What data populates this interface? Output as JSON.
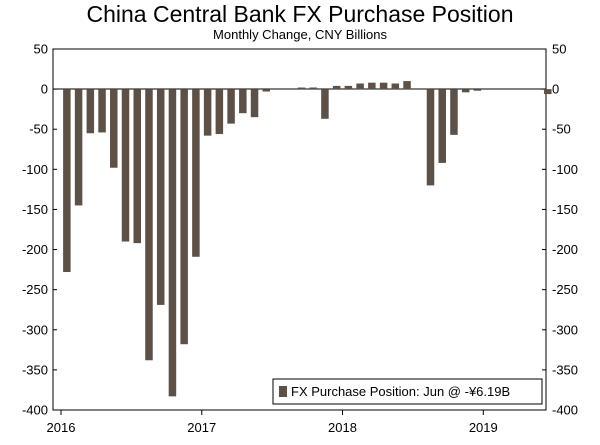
{
  "chart_data": {
    "type": "bar",
    "title": "China Central Bank FX Purchase Position",
    "subtitle": "Monthly Change, CNY Billions",
    "ylim": [
      -400,
      50
    ],
    "yticks": [
      50,
      0,
      -50,
      -100,
      -150,
      -200,
      -250,
      -300,
      -350,
      -400
    ],
    "xlabels": [
      "2016",
      "2017",
      "2018",
      "2019"
    ],
    "grid": false,
    "legend": {
      "position": "bottom-right",
      "label": "FX Purchase Position: Jun @ -¥6.19B"
    },
    "bar_color": "#5d5147",
    "series": [
      {
        "values": [
          -228,
          -145,
          -55,
          -54,
          -98,
          -190,
          -192,
          -338,
          -269,
          -383,
          -318,
          -209,
          -58,
          -56,
          -43,
          -30,
          -35,
          -3,
          0,
          0,
          2,
          2,
          -37,
          4,
          4,
          7,
          8,
          8,
          7,
          10,
          0,
          -120,
          -92,
          -57,
          -4,
          -2,
          0,
          0,
          0,
          0,
          0,
          -6.19
        ]
      }
    ]
  }
}
